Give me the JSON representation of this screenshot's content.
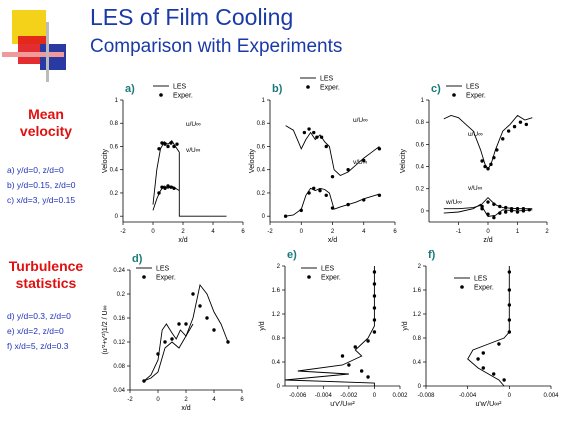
{
  "header": {
    "title": "LES of Film Cooling",
    "subtitle": "Comparison with Experiments",
    "deco_colors": [
      "#f5d21a",
      "#e0161b",
      "#2a3aa3"
    ]
  },
  "sidebar": {
    "mean_heading": [
      "Mean",
      "velocity"
    ],
    "mean_items": [
      "a)  y/d=0, z/d=0",
      "b)  y/d=0.15, z/d=0",
      "c)  x/d=3, y/d=0.15"
    ],
    "turb_heading": [
      "Turbulence",
      "statistics"
    ],
    "turb_items": [
      "d)  y/d=0.3, z/d=0",
      "e)  x/d=2, z/d=0",
      "f)  x/d=5, z/d=0.3"
    ]
  },
  "colors": {
    "heading_red": "#e01010",
    "text_blue": "#2233bb",
    "panel_letter": "#1a7a7a"
  },
  "legend": {
    "line_label": "LES",
    "marker_label": "Exper."
  },
  "chart_data": [
    {
      "id": "a",
      "letter": "a)",
      "type": "line",
      "xlabel": "x/d",
      "ylabel": "Velocity",
      "xlim": [
        -2,
        6
      ],
      "ylim": [
        -0.05,
        1.0
      ],
      "xticks": [
        "-2",
        "0",
        "2",
        "4",
        "6"
      ],
      "yticks": [
        "0",
        "0.2",
        "0.4",
        "0.6",
        "0.8",
        "1"
      ],
      "annotations": [
        "u/U∞",
        "v/U∞"
      ],
      "series": [
        {
          "kind": "line",
          "x": [
            0,
            0.25,
            0.5,
            0.75,
            1.0,
            1.25,
            1.5,
            1.75,
            1.75,
            4.9
          ],
          "y": [
            0.1,
            0.4,
            0.58,
            0.64,
            0.62,
            0.65,
            0.6,
            0.55,
            0.0,
            0.0
          ]
        },
        {
          "kind": "line",
          "x": [
            0,
            0.25,
            0.5,
            0.75,
            1.0,
            1.25,
            1.5,
            1.75
          ],
          "y": [
            0.05,
            0.15,
            0.22,
            0.26,
            0.24,
            0.26,
            0.24,
            0.22
          ]
        },
        {
          "kind": "markers",
          "x": [
            0.4,
            0.6,
            0.8,
            1.0,
            1.2,
            1.4,
            1.6
          ],
          "y": [
            0.58,
            0.63,
            0.62,
            0.6,
            0.63,
            0.6,
            0.62
          ]
        },
        {
          "kind": "markers",
          "x": [
            0.4,
            0.6,
            0.8,
            1.0,
            1.2,
            1.4
          ],
          "y": [
            0.2,
            0.25,
            0.24,
            0.26,
            0.25,
            0.24
          ]
        }
      ]
    },
    {
      "id": "b",
      "letter": "b)",
      "type": "line",
      "xlabel": "x/d",
      "ylabel": "Velocity",
      "xlim": [
        -2,
        6
      ],
      "ylim": [
        -0.05,
        1.0
      ],
      "xticks": [
        "-2",
        "0",
        "2",
        "4",
        "6"
      ],
      "yticks": [
        "0",
        "0.2",
        "0.4",
        "0.6",
        "0.8",
        "1"
      ],
      "annotations": [
        "u/U∞",
        "v/U∞"
      ],
      "series": [
        {
          "kind": "line",
          "x": [
            -1,
            -0.5,
            0,
            0.3,
            0.6,
            0.9,
            1.2,
            1.5,
            1.8,
            2.1,
            2.5,
            3,
            3.5,
            4,
            4.5,
            5
          ],
          "y": [
            0.78,
            0.74,
            0.58,
            0.66,
            0.72,
            0.66,
            0.7,
            0.64,
            0.6,
            0.4,
            0.35,
            0.38,
            0.44,
            0.5,
            0.55,
            0.6
          ]
        },
        {
          "kind": "line",
          "x": [
            -1,
            -0.5,
            0,
            0.3,
            0.6,
            0.9,
            1.2,
            1.5,
            1.8,
            2.1,
            2.5,
            3,
            3.5,
            4,
            4.5,
            5
          ],
          "y": [
            0.0,
            0.01,
            0.06,
            0.18,
            0.24,
            0.22,
            0.24,
            0.23,
            0.2,
            0.06,
            0.08,
            0.1,
            0.12,
            0.15,
            0.17,
            0.19
          ]
        },
        {
          "kind": "markers",
          "x": [
            0.2,
            0.5,
            0.8,
            1.0,
            1.3,
            1.6,
            2.0,
            3.0,
            4.0,
            5.0
          ],
          "y": [
            0.72,
            0.75,
            0.72,
            0.68,
            0.68,
            0.6,
            0.34,
            0.4,
            0.48,
            0.58
          ]
        },
        {
          "kind": "markers",
          "x": [
            -1,
            0,
            0.5,
            0.8,
            1.2,
            1.6,
            2.0,
            3.0,
            4.0,
            5.0
          ],
          "y": [
            0.0,
            0.05,
            0.2,
            0.24,
            0.22,
            0.18,
            0.07,
            0.1,
            0.14,
            0.18
          ]
        }
      ]
    },
    {
      "id": "c",
      "letter": "c)",
      "type": "line",
      "xlabel": "z/d",
      "ylabel": "Velocity",
      "xlim": [
        -2,
        2
      ],
      "ylim": [
        -0.1,
        1.0
      ],
      "xticks": [
        "-1",
        "0",
        "1",
        "2"
      ],
      "yticks": [
        "0",
        "0.2",
        "0.4",
        "0.6",
        "0.8",
        "1"
      ],
      "annotations": [
        "u/U∞",
        "v/U∞",
        "w/U∞"
      ],
      "series": [
        {
          "kind": "line",
          "x": [
            -1.5,
            -1.25,
            -1,
            -0.75,
            -0.5,
            -0.25,
            -0.1,
            0,
            0.1,
            0.25,
            0.5,
            0.75,
            1,
            1.25,
            1.5
          ],
          "y": [
            0.83,
            0.86,
            0.84,
            0.78,
            0.72,
            0.55,
            0.42,
            0.38,
            0.42,
            0.55,
            0.72,
            0.78,
            0.86,
            0.82,
            0.84
          ]
        },
        {
          "kind": "line",
          "x": [
            -1.5,
            -1,
            -0.5,
            -0.25,
            0,
            0.15,
            0.3,
            0.5,
            1,
            1.5
          ],
          "y": [
            0.02,
            0.02,
            0.03,
            0.05,
            0.12,
            0.08,
            0.05,
            0.03,
            0.02,
            0.02
          ]
        },
        {
          "kind": "line",
          "x": [
            -1.5,
            -1,
            -0.5,
            -0.25,
            0,
            0.25,
            0.5,
            1,
            1.5
          ],
          "y": [
            -0.02,
            -0.01,
            0.02,
            0.06,
            -0.05,
            -0.04,
            0.01,
            0.0,
            0.01
          ]
        },
        {
          "kind": "markers",
          "x": [
            -0.2,
            -0.1,
            0,
            0.1,
            0.2,
            0.3,
            0.5,
            0.7,
            0.9,
            1.1,
            1.3
          ],
          "y": [
            0.45,
            0.4,
            0.38,
            0.42,
            0.48,
            0.55,
            0.65,
            0.72,
            0.76,
            0.8,
            0.78
          ]
        },
        {
          "kind": "markers",
          "x": [
            -0.2,
            0,
            0.2,
            0.4,
            0.6,
            0.8,
            1.0,
            1.2,
            1.4
          ],
          "y": [
            0.02,
            0.08,
            0.06,
            0.04,
            0.03,
            0.02,
            0.02,
            0.02,
            0.01
          ]
        },
        {
          "kind": "markers",
          "x": [
            -0.2,
            0,
            0.2,
            0.4,
            0.6,
            0.8,
            1.0,
            1.2
          ],
          "y": [
            0.04,
            -0.03,
            -0.06,
            -0.02,
            -0.01,
            0.0,
            -0.01,
            0.0
          ]
        }
      ]
    },
    {
      "id": "d",
      "letter": "d)",
      "type": "line",
      "xlabel": "x/d",
      "ylabel": "(u'²+v'²)1/2 / U∞",
      "xlim": [
        -2,
        6
      ],
      "ylim": [
        0.04,
        0.24
      ],
      "xticks": [
        "-2",
        "0",
        "2",
        "4",
        "6"
      ],
      "yticks": [
        "0.04",
        "0.08",
        "0.12",
        "0.16",
        "0.2",
        "0.24"
      ],
      "annotations": [],
      "series": [
        {
          "kind": "line",
          "x": [
            -1,
            -0.5,
            0,
            0.3,
            0.6,
            1.0,
            1.3,
            1.6,
            2.0,
            2.5,
            3.0,
            3.5,
            4.0,
            4.5,
            5.0
          ],
          "y": [
            0.055,
            0.065,
            0.09,
            0.14,
            0.15,
            0.135,
            0.125,
            0.14,
            0.13,
            0.16,
            0.215,
            0.2,
            0.17,
            0.15,
            0.12
          ]
        },
        {
          "kind": "line",
          "x": [
            -1,
            -0.5,
            0,
            0.5,
            1.0,
            1.5,
            2.0,
            2.5
          ],
          "y": [
            0.055,
            0.06,
            0.07,
            0.11,
            0.12,
            0.11,
            0.13,
            0.15
          ]
        },
        {
          "kind": "markers",
          "x": [
            -1,
            0,
            0.5,
            1.0,
            1.5,
            2.0,
            2.5,
            3.0,
            3.5,
            4.0,
            5.0
          ],
          "y": [
            0.055,
            0.1,
            0.12,
            0.125,
            0.15,
            0.15,
            0.2,
            0.18,
            0.16,
            0.14,
            0.12
          ]
        }
      ]
    },
    {
      "id": "e",
      "letter": "e)",
      "type": "line",
      "xlabel": "u'v'/U∞²",
      "ylabel": "y/d",
      "xlim": [
        -0.007,
        0.002
      ],
      "ylim": [
        0,
        2.0
      ],
      "xticks": [
        "-0.006",
        "-0.004",
        "-0.002",
        "0",
        "0.002"
      ],
      "yticks": [
        "0",
        "0.4",
        "0.8",
        "1.2",
        "1.6",
        "2"
      ],
      "annotations": [],
      "series": [
        {
          "kind": "line",
          "x": [
            0,
            0,
            -0.0005,
            -0.001,
            -0.0015,
            -0.001,
            -0.0015,
            -0.002,
            -0.0025,
            -0.006,
            -0.002,
            -0.007,
            0.0,
            0.0
          ],
          "y": [
            2.0,
            1.0,
            0.8,
            0.7,
            0.6,
            0.5,
            0.45,
            0.4,
            0.35,
            0.25,
            0.2,
            0.1,
            0.05,
            0.0
          ]
        },
        {
          "kind": "markers",
          "x": [
            0,
            0,
            0,
            0,
            0,
            0,
            -0.0005,
            -0.0015,
            -0.0025,
            -0.002,
            -0.001,
            -0.0005
          ],
          "y": [
            1.9,
            1.7,
            1.5,
            1.3,
            1.1,
            0.9,
            0.75,
            0.65,
            0.5,
            0.35,
            0.25,
            0.15
          ]
        }
      ]
    },
    {
      "id": "f",
      "letter": "f)",
      "type": "line",
      "xlabel": "u'w'/U∞²",
      "ylabel": "y/d",
      "xlim": [
        -0.008,
        0.004
      ],
      "ylim": [
        0,
        2.0
      ],
      "xticks": [
        "-0.008",
        "-0.004",
        "0",
        "0.004"
      ],
      "yticks": [
        "0",
        "0.4",
        "0.8",
        "1.2",
        "1.6",
        "2"
      ],
      "annotations": [],
      "series": [
        {
          "kind": "line",
          "x": [
            0,
            0,
            -0.0005,
            -0.002,
            -0.0035,
            -0.004,
            -0.003,
            -0.002,
            -0.001,
            -0.0005
          ],
          "y": [
            2.0,
            0.9,
            0.8,
            0.7,
            0.6,
            0.45,
            0.3,
            0.2,
            0.1,
            0.0
          ]
        },
        {
          "kind": "markers",
          "x": [
            0,
            0,
            0,
            0,
            0,
            -0.001,
            -0.0025,
            -0.003,
            -0.0025,
            -0.0015,
            -0.0005
          ],
          "y": [
            1.9,
            1.6,
            1.35,
            1.1,
            0.9,
            0.7,
            0.55,
            0.45,
            0.3,
            0.2,
            0.1
          ]
        }
      ]
    }
  ]
}
